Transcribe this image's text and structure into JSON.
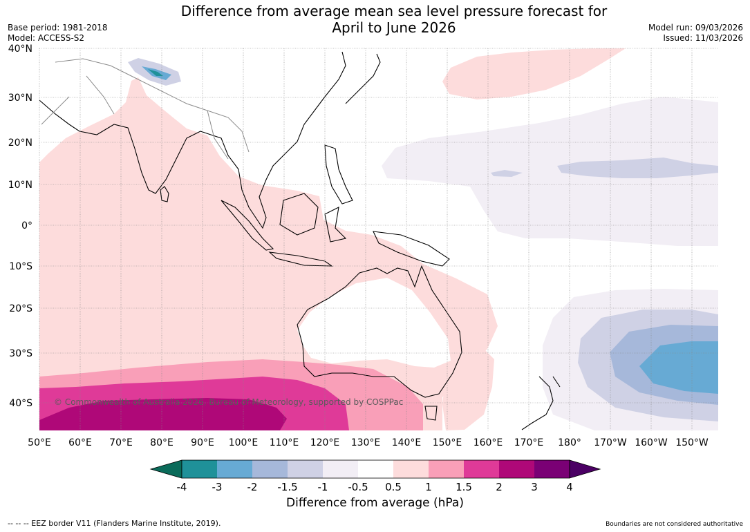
{
  "map": {
    "title": "Difference from average mean sea level pressure forecast for\nApril to June 2026",
    "base_period": "Base period: 1981-2018",
    "model": "Model: ACCESS-S2",
    "model_run": "Model run: 09/03/2026",
    "issued": "Issued: 11/03/2026",
    "attribution": "© Commonwealth of Australia 2026, Bureau of Meteorology, supported by COSPPac",
    "eez_note": "--  --  -- EEZ border V11 (Flanders Marine Institute, 2019).",
    "boundary_note": "Boundaries are not considered authoritative",
    "lat_labels": [
      "40°N",
      "30°N",
      "20°N",
      "10°N",
      "0°",
      "10°S",
      "20°S",
      "30°S",
      "40°S"
    ],
    "lon_labels": [
      "50°E",
      "60°E",
      "70°E",
      "80°E",
      "90°E",
      "100°E",
      "110°E",
      "120°E",
      "130°E",
      "140°E",
      "150°E",
      "160°E",
      "170°E",
      "180°",
      "170°W",
      "160°W",
      "150°W"
    ]
  },
  "colorbar": {
    "label": "Difference from average (hPa)",
    "ticks": [
      "-4",
      "-3",
      "-2",
      "-1.5",
      "-1",
      "-0.5",
      "0.5",
      "1",
      "1.5",
      "2",
      "3",
      "4"
    ],
    "colors": [
      "#0a6b5a",
      "#1f9199",
      "#67aad4",
      "#a6b8da",
      "#cfd1e5",
      "#f2eef5",
      "#ffffff",
      "#fddcdc",
      "#f99fb8",
      "#df3a98",
      "#af0878",
      "#7a0075",
      "#4b0064"
    ]
  }
}
